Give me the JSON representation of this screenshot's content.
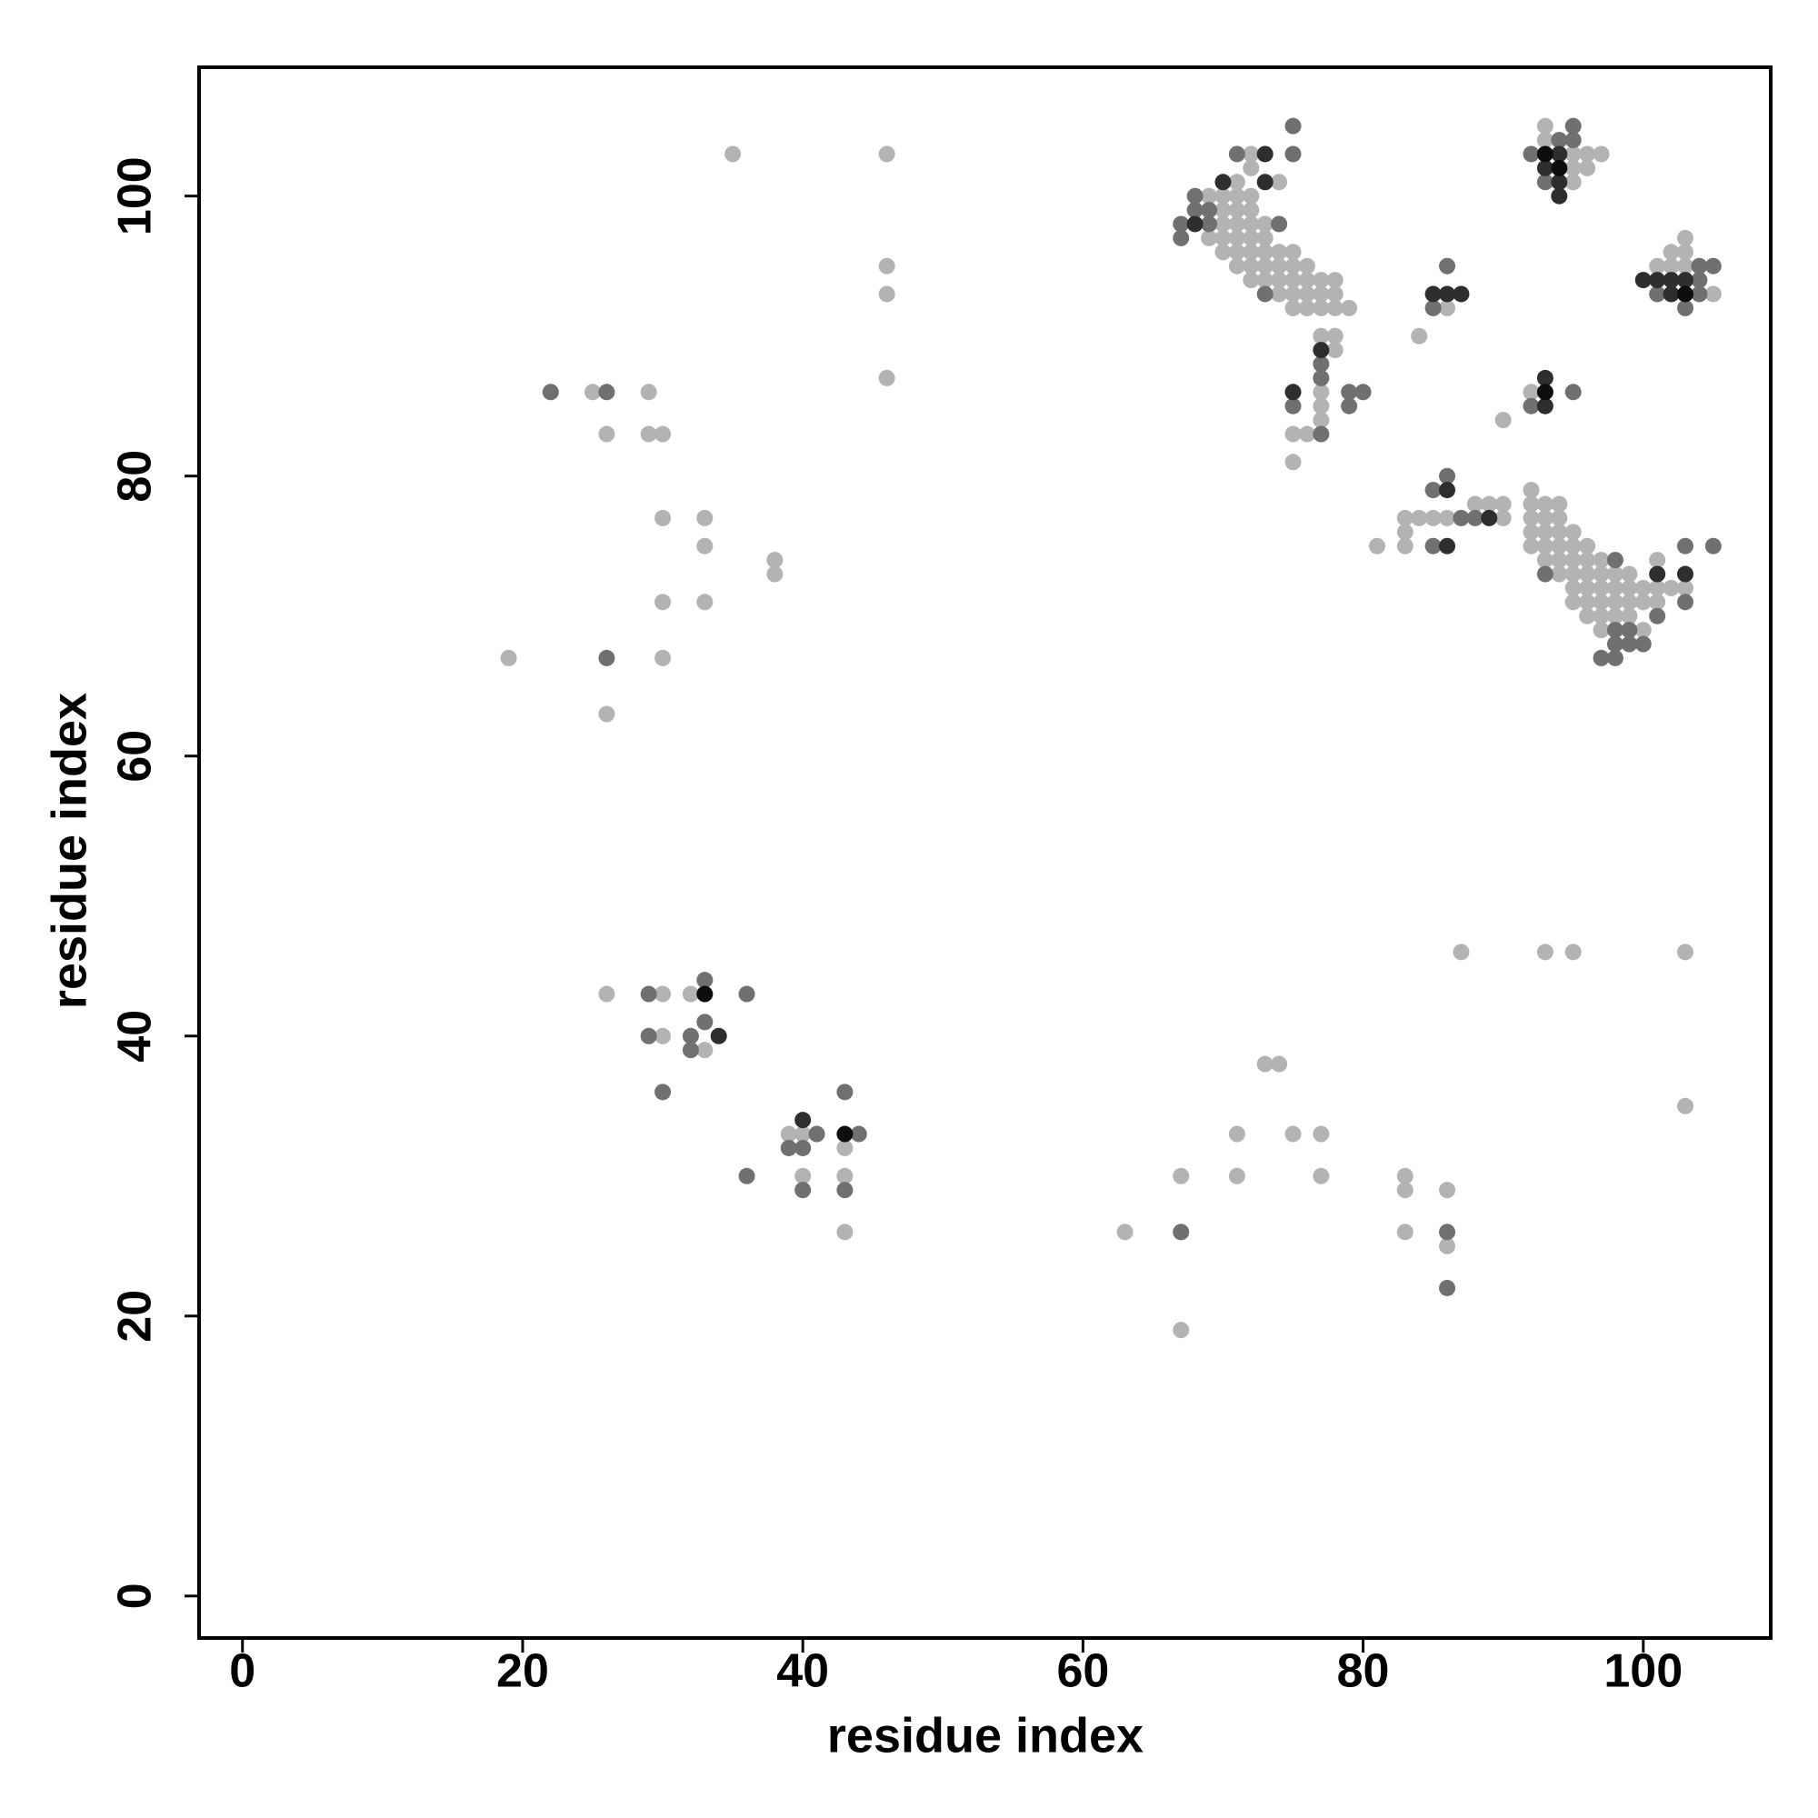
{
  "chart_data": {
    "type": "scatter",
    "xlabel": "residue index",
    "ylabel": "residue index",
    "xlim": [
      -3.1,
      109.1
    ],
    "ylim": [
      -3.0,
      109.2
    ],
    "xticks": [
      0,
      20,
      40,
      60,
      80,
      100
    ],
    "yticks": [
      0,
      20,
      40,
      60,
      80,
      100
    ],
    "series": [
      {
        "color": "#b3b3b3",
        "x": [
          35,
          46,
          46,
          46,
          46,
          25,
          29,
          26,
          29,
          30,
          30,
          33,
          33,
          38,
          38,
          30,
          33,
          19,
          30,
          26,
          26,
          30,
          32,
          30,
          33,
          39,
          40,
          43,
          40,
          43,
          43,
          63,
          67,
          67,
          71,
          71,
          73,
          74,
          75,
          77,
          77,
          83,
          83,
          83,
          86,
          86,
          87,
          93,
          95,
          103,
          103,
          72,
          72,
          71,
          74,
          69,
          70,
          71,
          72,
          70,
          71,
          72,
          70,
          71,
          72,
          73,
          69,
          70,
          71,
          72,
          73,
          70,
          71,
          72,
          73,
          74,
          75,
          71,
          72,
          73,
          74,
          75,
          76,
          72,
          73,
          74,
          75,
          76,
          77,
          78,
          74,
          75,
          76,
          77,
          78,
          75,
          76,
          77,
          78,
          79,
          77,
          78,
          78,
          77,
          77,
          77,
          75,
          76,
          75,
          93,
          93,
          95,
          96,
          97,
          95,
          96,
          95,
          86,
          84,
          90,
          92,
          103,
          102,
          103,
          101,
          102,
          103,
          105,
          83,
          84,
          85,
          86,
          88,
          89,
          90,
          90,
          83,
          81,
          83,
          92,
          92,
          93,
          94,
          92,
          93,
          94,
          92,
          93,
          94,
          95,
          92,
          93,
          94,
          95,
          96,
          93,
          94,
          95,
          96,
          97,
          94,
          95,
          96,
          97,
          98,
          99,
          95,
          96,
          97,
          98,
          99,
          100,
          101,
          102,
          103,
          95,
          96,
          97,
          98,
          99,
          100,
          101,
          96,
          97,
          98,
          99,
          97,
          100,
          101
        ],
        "y": [
          103,
          103,
          95,
          93,
          87,
          86,
          86,
          83,
          83,
          83,
          77,
          77,
          75,
          74,
          73,
          71,
          71,
          67,
          67,
          63,
          43,
          43,
          43,
          40,
          39,
          33,
          33,
          32,
          30,
          30,
          26,
          26,
          30,
          19,
          33,
          30,
          38,
          38,
          33,
          33,
          30,
          30,
          29,
          26,
          29,
          25,
          46,
          46,
          46,
          46,
          35,
          103,
          102,
          101,
          101,
          100,
          100,
          100,
          100,
          99,
          99,
          99,
          98,
          98,
          98,
          98,
          97,
          97,
          97,
          97,
          97,
          96,
          96,
          96,
          96,
          96,
          96,
          95,
          95,
          95,
          95,
          95,
          95,
          94,
          94,
          94,
          94,
          94,
          94,
          94,
          93,
          93,
          93,
          93,
          93,
          92,
          92,
          92,
          92,
          92,
          90,
          90,
          89,
          86,
          85,
          84,
          83,
          83,
          81,
          105,
          104,
          103,
          103,
          103,
          102,
          102,
          101,
          92,
          90,
          84,
          86,
          97,
          96,
          96,
          95,
          95,
          95,
          93,
          77,
          77,
          77,
          77,
          78,
          78,
          78,
          77,
          76,
          75,
          75,
          79,
          78,
          78,
          78,
          77,
          77,
          77,
          76,
          76,
          76,
          76,
          75,
          75,
          75,
          75,
          75,
          74,
          74,
          74,
          74,
          74,
          73,
          73,
          73,
          73,
          73,
          73,
          72,
          72,
          72,
          72,
          72,
          72,
          72,
          72,
          72,
          71,
          71,
          71,
          71,
          71,
          71,
          71,
          70,
          70,
          70,
          70,
          69,
          69,
          74
        ]
      },
      {
        "color": "#707070",
        "x": [
          22,
          26,
          26,
          29,
          33,
          36,
          29,
          32,
          33,
          32,
          30,
          41,
          39,
          40,
          43,
          44,
          36,
          40,
          43,
          67,
          86,
          86,
          75,
          71,
          75,
          68,
          68,
          69,
          67,
          69,
          74,
          67,
          73,
          77,
          77,
          79,
          80,
          75,
          79,
          77,
          95,
          94,
          95,
          92,
          93,
          86,
          85,
          92,
          95,
          104,
          105,
          104,
          101,
          104,
          103,
          86,
          85,
          87,
          88,
          85,
          98,
          93,
          103,
          101,
          98,
          99,
          98,
          99,
          100,
          97,
          98,
          103,
          105
        ],
        "y": [
          86,
          86,
          67,
          43,
          44,
          43,
          40,
          40,
          41,
          39,
          36,
          33,
          32,
          32,
          36,
          33,
          30,
          29,
          29,
          26,
          26,
          22,
          105,
          103,
          103,
          100,
          99,
          99,
          98,
          98,
          98,
          97,
          93,
          88,
          87,
          86,
          86,
          85,
          85,
          83,
          105,
          104,
          104,
          103,
          101,
          95,
          92,
          85,
          86,
          95,
          95,
          94,
          93,
          93,
          92,
          80,
          79,
          77,
          77,
          75,
          74,
          73,
          71,
          70,
          69,
          69,
          68,
          68,
          68,
          67,
          67,
          75,
          75
        ]
      },
      {
        "color": "#2e2e2e",
        "x": [
          34,
          40,
          73,
          70,
          73,
          68,
          77,
          75,
          94,
          93,
          94,
          94,
          85,
          86,
          87,
          93,
          93,
          100,
          101,
          102,
          103,
          102,
          86,
          89,
          86,
          101,
          103
        ],
        "y": [
          40,
          34,
          103,
          101,
          101,
          98,
          89,
          86,
          103,
          102,
          101,
          100,
          93,
          93,
          93,
          87,
          85,
          94,
          94,
          94,
          94,
          93,
          79,
          77,
          75,
          73,
          73
        ]
      },
      {
        "color": "#0d0d0d",
        "x": [
          33,
          43,
          93,
          94,
          93,
          103
        ],
        "y": [
          43,
          33,
          103,
          102,
          86,
          93
        ]
      }
    ]
  }
}
